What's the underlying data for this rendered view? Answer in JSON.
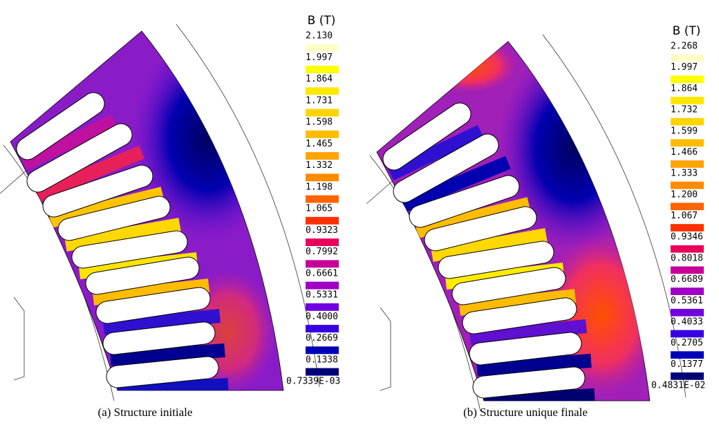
{
  "panels": [
    {
      "legend_title": "B (T)",
      "legend_labels": [
        "2.130",
        "1.997",
        "1.864",
        "1.731",
        "1.598",
        "1.465",
        "1.332",
        "1.198",
        "1.065",
        "0.9323",
        "0.7992",
        "0.6661",
        "0.5331",
        "0.4000",
        "0.2669",
        "0.1338",
        "0.7339E-03"
      ],
      "caption": "(a) Structure initiale"
    },
    {
      "legend_title": "B (T)",
      "legend_labels": [
        "2.268",
        "1.997",
        "1.864",
        "1.732",
        "1.599",
        "1.466",
        "1.333",
        "1.200",
        "1.067",
        "0.9346",
        "0.8018",
        "0.6689",
        "0.5361",
        "0.4033",
        "0.2705",
        "0.1377",
        "0.4831E-02"
      ],
      "caption": "(b) Structure unique finale"
    }
  ],
  "legend_colors": [
    "#ffffc8",
    "#ffff00",
    "#ffe800",
    "#ffd400",
    "#ffbc00",
    "#ffa400",
    "#ff8c00",
    "#ff6400",
    "#ff3000",
    "#e8005a",
    "#c8009a",
    "#a000c4",
    "#7000e0",
    "#3800e0",
    "#0000b8",
    "#000078"
  ]
}
